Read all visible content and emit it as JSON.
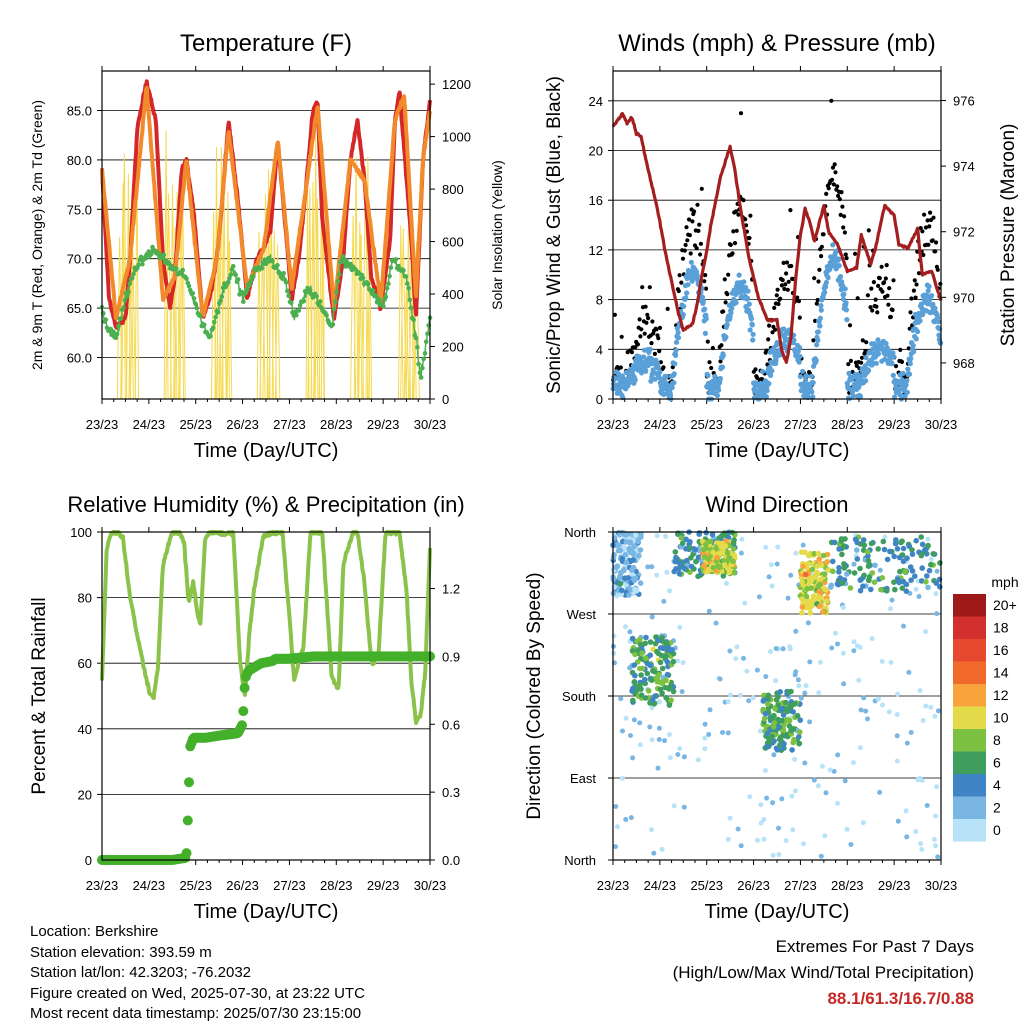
{
  "chart_data": [
    {
      "type": "line",
      "title": "Temperature (F)",
      "xlabel": "Time (Day/UTC)",
      "ylabel": "2m & 9m T (Red, Orange) & 2m Td (Green)",
      "ylabel_right": "Solar Insolation (Yellow)",
      "x_ticks": [
        "23/23",
        "24/23",
        "25/23",
        "26/23",
        "27/23",
        "28/23",
        "29/23",
        "30/23"
      ],
      "y_ticks": [
        "60.0",
        "65.0",
        "70.0",
        "75.0",
        "80.0",
        "85.0"
      ],
      "y_right_ticks": [
        "0",
        "200",
        "400",
        "600",
        "800",
        "1000",
        "1200"
      ],
      "ylim": [
        55.8,
        89.0
      ],
      "ylim_right": [
        0,
        1250
      ],
      "x_day_labels": [
        "23/23",
        "24/23",
        "25/23",
        "26/23",
        "27/23",
        "28/23",
        "29/23",
        "30/23"
      ],
      "series": [
        {
          "name": "2m T",
          "color": "#d62728",
          "x": [
            0,
            0.15,
            0.3,
            0.5,
            0.6,
            0.75,
            0.95,
            1.15,
            1.3,
            1.45,
            1.55,
            1.7,
            1.8,
            1.95,
            2.15,
            2.3,
            2.45,
            2.55,
            2.7,
            2.9,
            3.1,
            3.2,
            3.3,
            3.45,
            3.6,
            3.75,
            3.9,
            4.05,
            4.2,
            4.35,
            4.5,
            4.6,
            4.7,
            4.95,
            5.15,
            5.3,
            5.45,
            5.6,
            5.75,
            5.95,
            6.15,
            6.25,
            6.35,
            6.45,
            6.6,
            6.7,
            6.85,
            7.0
          ],
          "y": [
            79,
            66,
            63,
            64,
            70,
            83,
            88,
            84,
            70,
            65,
            68,
            79,
            80,
            75,
            64,
            66,
            70,
            75,
            84,
            76,
            66,
            68,
            70,
            71,
            73,
            82,
            74,
            66,
            70,
            77,
            85,
            86,
            74,
            64,
            70,
            80,
            84,
            78,
            68,
            65,
            72,
            84,
            87,
            81,
            72,
            64,
            80,
            86
          ]
        },
        {
          "name": "9m T",
          "color": "#f28a2b",
          "x": [
            0,
            0.3,
            0.6,
            0.95,
            1.3,
            1.55,
            1.8,
            2.15,
            2.45,
            2.7,
            3.1,
            3.45,
            3.75,
            4.05,
            4.35,
            4.6,
            4.95,
            5.3,
            5.6,
            5.95,
            6.25,
            6.45,
            6.7,
            6.85,
            7.0
          ],
          "y": [
            79,
            64,
            70,
            87.5,
            66,
            68,
            80,
            64,
            70,
            83,
            67,
            71,
            82,
            67,
            77,
            85.5,
            65,
            80,
            78,
            65.5,
            84,
            86.5,
            66,
            80,
            85
          ]
        },
        {
          "name": "2m Td",
          "color": "#4caf50",
          "x": [
            0,
            0.1,
            0.3,
            0.5,
            0.7,
            0.9,
            1.1,
            1.3,
            1.5,
            1.8,
            2.1,
            2.3,
            2.6,
            2.8,
            3.0,
            3.3,
            3.6,
            3.9,
            4.1,
            4.4,
            4.6,
            4.9,
            5.1,
            5.4,
            5.7,
            6.0,
            6.2,
            6.5,
            6.7,
            6.8,
            6.9,
            7.0
          ],
          "y": [
            65,
            63,
            62,
            66,
            69,
            70,
            71,
            70,
            69,
            68,
            64,
            62,
            67,
            69,
            66,
            69,
            70,
            68,
            64,
            67,
            66,
            63,
            70,
            69,
            67,
            65,
            70,
            68,
            62,
            58,
            61,
            64
          ]
        }
      ],
      "solar_peaks": {
        "name": "Solar Insolation",
        "color": "#f5d94e",
        "day_peaks": [
          1000,
          1200,
          1150,
          1050,
          1000,
          1000,
          800
        ],
        "spikes_per_day": 7
      }
    },
    {
      "type": "scatter",
      "title": "Winds (mph) & Pressure (mb)",
      "xlabel": "Time (Day/UTC)",
      "ylabel": "Sonic/Prop Wind & Gust (Blue, Black)",
      "ylabel_right": "Station Pressure (Maroon)",
      "x_ticks": [
        "23/23",
        "24/23",
        "25/23",
        "26/23",
        "27/23",
        "28/23",
        "29/23",
        "30/23"
      ],
      "y_ticks": [
        "0",
        "4",
        "8",
        "12",
        "16",
        "20",
        "24"
      ],
      "y_right_ticks": [
        "968",
        "970",
        "972",
        "974",
        "976"
      ],
      "ylim": [
        0,
        26.4
      ],
      "ylim_right": [
        966.9,
        976.9
      ],
      "series": [
        {
          "name": "Sonic/Prop Wind",
          "color": "#5aa0d8",
          "day_means": [
            2,
            9,
            8,
            4,
            10,
            3,
            7
          ],
          "day_peaks": [
            4,
            11,
            12,
            8,
            14,
            8,
            12
          ]
        },
        {
          "name": "Gust",
          "color": "#000000",
          "day_means": [
            4,
            12,
            13,
            8,
            16,
            7,
            12
          ],
          "day_peaks": [
            9,
            18,
            23,
            16,
            24,
            17,
            15
          ]
        },
        {
          "name": "Station Pressure",
          "color": "#a31f1f",
          "x": [
            0,
            0.1,
            0.2,
            0.3,
            0.4,
            0.5,
            0.6,
            0.7,
            0.9,
            1.0,
            1.1,
            1.2,
            1.4,
            1.5,
            1.7,
            1.8,
            1.9,
            2.0,
            2.1,
            2.3,
            2.5,
            2.6,
            2.7,
            2.9,
            3.1,
            3.3,
            3.5,
            3.6,
            3.7,
            3.8,
            3.9,
            4.0,
            4.1,
            4.2,
            4.3,
            4.5,
            4.6,
            4.8,
            5.0,
            5.2,
            5.3,
            5.5,
            5.6,
            5.8,
            6.0,
            6.1,
            6.3,
            6.5,
            6.6,
            6.8,
            7.0
          ],
          "y": [
            975.2,
            975.4,
            975.6,
            975.3,
            975.5,
            975.0,
            974.9,
            974.2,
            973.0,
            972.3,
            971.5,
            970.8,
            969.5,
            969.0,
            969.2,
            969.8,
            970.7,
            971.4,
            972.3,
            973.7,
            974.6,
            973.9,
            972.9,
            971.2,
            970.0,
            969.3,
            969.3,
            968.4,
            968.0,
            968.8,
            970.6,
            971.9,
            972.7,
            972.3,
            971.7,
            972.8,
            972.0,
            971.6,
            970.8,
            970.9,
            971.9,
            971.0,
            971.5,
            972.8,
            972.5,
            971.6,
            971.5,
            972.1,
            970.7,
            970.8,
            969.9
          ]
        }
      ]
    },
    {
      "type": "line",
      "title": "Relative Humidity (%) & Precipitation (in)",
      "xlabel": "Time (Day/UTC)",
      "ylabel": "Percent & Total Rainfall",
      "x_ticks": [
        "23/23",
        "24/23",
        "25/23",
        "26/23",
        "27/23",
        "28/23",
        "29/23",
        "30/23"
      ],
      "y_ticks": [
        "0",
        "20",
        "40",
        "60",
        "80",
        "100"
      ],
      "y_right_ticks": [
        "0.0",
        "0.3",
        "0.6",
        "0.9",
        "1.2"
      ],
      "ylim": [
        0,
        100
      ],
      "ylim_right": [
        0,
        1.45
      ],
      "series": [
        {
          "name": "Relative Humidity",
          "color": "#8bc34a",
          "x": [
            0,
            0.1,
            0.2,
            0.35,
            0.45,
            0.6,
            0.8,
            1.0,
            1.1,
            1.2,
            1.3,
            1.5,
            1.65,
            1.75,
            1.85,
            1.95,
            2.05,
            2.1,
            2.2,
            2.35,
            2.45,
            2.6,
            2.8,
            2.95,
            3.05,
            3.15,
            3.25,
            3.45,
            3.65,
            3.85,
            4.0,
            4.1,
            4.3,
            4.45,
            4.6,
            4.7,
            4.9,
            5.05,
            5.15,
            5.35,
            5.45,
            5.6,
            5.75,
            5.9,
            6.05,
            6.2,
            6.35,
            6.5,
            6.6,
            6.7,
            6.8,
            6.9,
            7.0
          ],
          "y": [
            55,
            95,
            100,
            100,
            98,
            80,
            65,
            52,
            49,
            60,
            90,
            100,
            100,
            97,
            78,
            85,
            74,
            72,
            98,
            100,
            100,
            99,
            100,
            60,
            50,
            70,
            83,
            99,
            100,
            100,
            74,
            55,
            65,
            100,
            100,
            100,
            56,
            52,
            90,
            100,
            100,
            85,
            60,
            62,
            100,
            100,
            100,
            82,
            55,
            42,
            44,
            58,
            95
          ]
        },
        {
          "name": "Total Rainfall",
          "color": "#43b02a",
          "x": [
            0,
            0.4,
            0.8,
            1.1,
            1.2,
            1.5,
            1.8,
            1.83,
            1.85,
            1.88,
            1.95,
            2.2,
            2.5,
            2.9,
            3.0,
            3.05,
            3.08,
            3.15,
            3.4,
            3.65,
            3.7,
            4.0,
            4.5,
            5.0,
            5.5,
            6.0,
            6.5,
            7.0
          ],
          "y": [
            0,
            0,
            0,
            0,
            0,
            0,
            0.01,
            0.17,
            0.29,
            0.5,
            0.54,
            0.54,
            0.55,
            0.56,
            0.6,
            0.79,
            0.82,
            0.84,
            0.87,
            0.88,
            0.89,
            0.89,
            0.9,
            0.9,
            0.9,
            0.9,
            0.9,
            0.9
          ]
        }
      ]
    },
    {
      "type": "scatter",
      "title": "Wind Direction",
      "xlabel": "Time (Day/UTC)",
      "ylabel": "Direction (Colored By Speed)",
      "x_ticks": [
        "23/23",
        "24/23",
        "25/23",
        "26/23",
        "27/23",
        "28/23",
        "29/23",
        "30/23"
      ],
      "y_ticks": [
        "North",
        "East",
        "South",
        "West",
        "North"
      ],
      "ylim": [
        0,
        360
      ],
      "legend_title": "mph",
      "legend_labels": [
        "20+",
        "18",
        "16",
        "14",
        "12",
        "10",
        "8",
        "6",
        "4",
        "2",
        "0"
      ],
      "legend_colors": [
        "#9e1a1a",
        "#d32f2f",
        "#e64a2e",
        "#f26a2b",
        "#f8a33b",
        "#e4db4b",
        "#7cc142",
        "#3f9e5d",
        "#3f84c4",
        "#79b6e4",
        "#b8e2f8"
      ],
      "clusters": [
        {
          "x_range": [
            0.0,
            0.6
          ],
          "dir_range": [
            290,
            360
          ],
          "speed": 2
        },
        {
          "x_range": [
            0.4,
            1.3
          ],
          "dir_range": [
            170,
            245
          ],
          "speed": 6
        },
        {
          "x_range": [
            1.3,
            2.6
          ],
          "dir_range": [
            310,
            360
          ],
          "speed": 5
        },
        {
          "x_range": [
            1.9,
            2.6
          ],
          "dir_range": [
            315,
            350
          ],
          "speed": 9
        },
        {
          "x_range": [
            3.2,
            4.0
          ],
          "dir_range": [
            120,
            185
          ],
          "speed": 6
        },
        {
          "x_range": [
            4.0,
            4.6
          ],
          "dir_range": [
            270,
            340
          ],
          "speed": 10
        },
        {
          "x_range": [
            4.6,
            7.0
          ],
          "dir_range": [
            295,
            355
          ],
          "speed": 5
        }
      ],
      "day_peaks": [
        3,
        7,
        11,
        9,
        18,
        9,
        11
      ]
    }
  ],
  "info": {
    "location": "Location: Berkshire",
    "elevation": "Station elevation: 393.59 m",
    "latlon": "Station lat/lon: 42.3203; -76.2032",
    "created": "Figure created on Wed, 2025-07-30, at 23:22 UTC",
    "latest": "Most recent data timestamp: 2025/07/30 23:15:00"
  },
  "extremes": {
    "line1": "Extremes For Past 7 Days",
    "line2": "(High/Low/Max Wind/Total Precipitation)",
    "values": "88.1/61.3/16.7/0.88"
  }
}
